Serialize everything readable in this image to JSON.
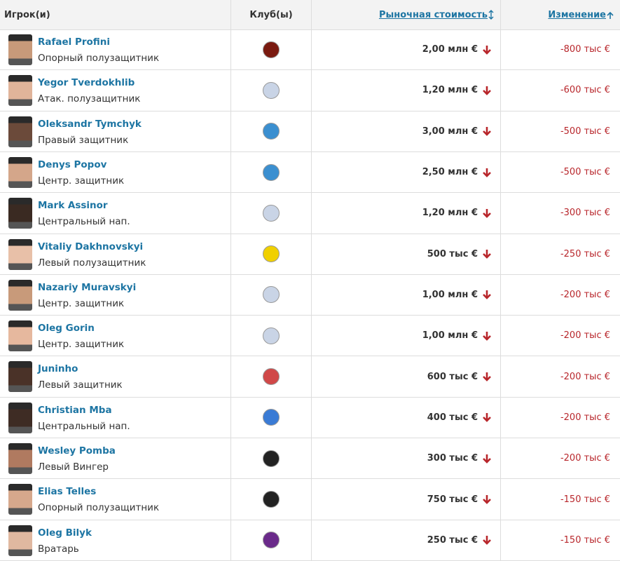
{
  "table": {
    "headers": [
      "Игрок(и)",
      "Клуб(ы)",
      "Рыночная стоимость",
      "Изменение"
    ],
    "rows": [
      {
        "name": "Rafael Profini",
        "position": "Опорный полузащитник",
        "value": "2,00 млн €",
        "change": "-800 тыс €"
      },
      {
        "name": "Yegor Tverdokhlib",
        "position": "Атак. полузащитник",
        "value": "1,20 млн €",
        "change": "-600 тыс €"
      },
      {
        "name": "Oleksandr Tymchyk",
        "position": "Правый защитник",
        "value": "3,00 млн €",
        "change": "-500 тыс €"
      },
      {
        "name": "Denys Popov",
        "position": "Центр. защитник",
        "value": "2,50 млн €",
        "change": "-500 тыс €"
      },
      {
        "name": "Mark Assinor",
        "position": "Центральный нап.",
        "value": "1,20 млн €",
        "change": "-300 тыс €"
      },
      {
        "name": "Vitaliy Dakhnovskyi",
        "position": "Левый полузащитник",
        "value": "500 тыс €",
        "change": "-250 тыс €"
      },
      {
        "name": "Nazariy Muravskyi",
        "position": "Центр. защитник",
        "value": "1,00 млн €",
        "change": "-200 тыс €"
      },
      {
        "name": "Oleg Gorin",
        "position": "Центр. защитник",
        "value": "1,00 млн €",
        "change": "-200 тыс €"
      },
      {
        "name": "Juninho",
        "position": "Левый защитник",
        "value": "600 тыс €",
        "change": "-200 тыс €"
      },
      {
        "name": "Christian Mba",
        "position": "Центральный нап.",
        "value": "400 тыс €",
        "change": "-200 тыс €"
      },
      {
        "name": "Wesley Pomba",
        "position": "Левый Вингер",
        "value": "300 тыс €",
        "change": "-200 тыс €"
      },
      {
        "name": "Elias Telles",
        "position": "Опорный полузащитник",
        "value": "750 тыс €",
        "change": "-150 тыс €"
      },
      {
        "name": "Oleg Bilyk",
        "position": "Вратарь",
        "value": "250 тыс €",
        "change": "-150 тыс €"
      }
    ]
  }
}
